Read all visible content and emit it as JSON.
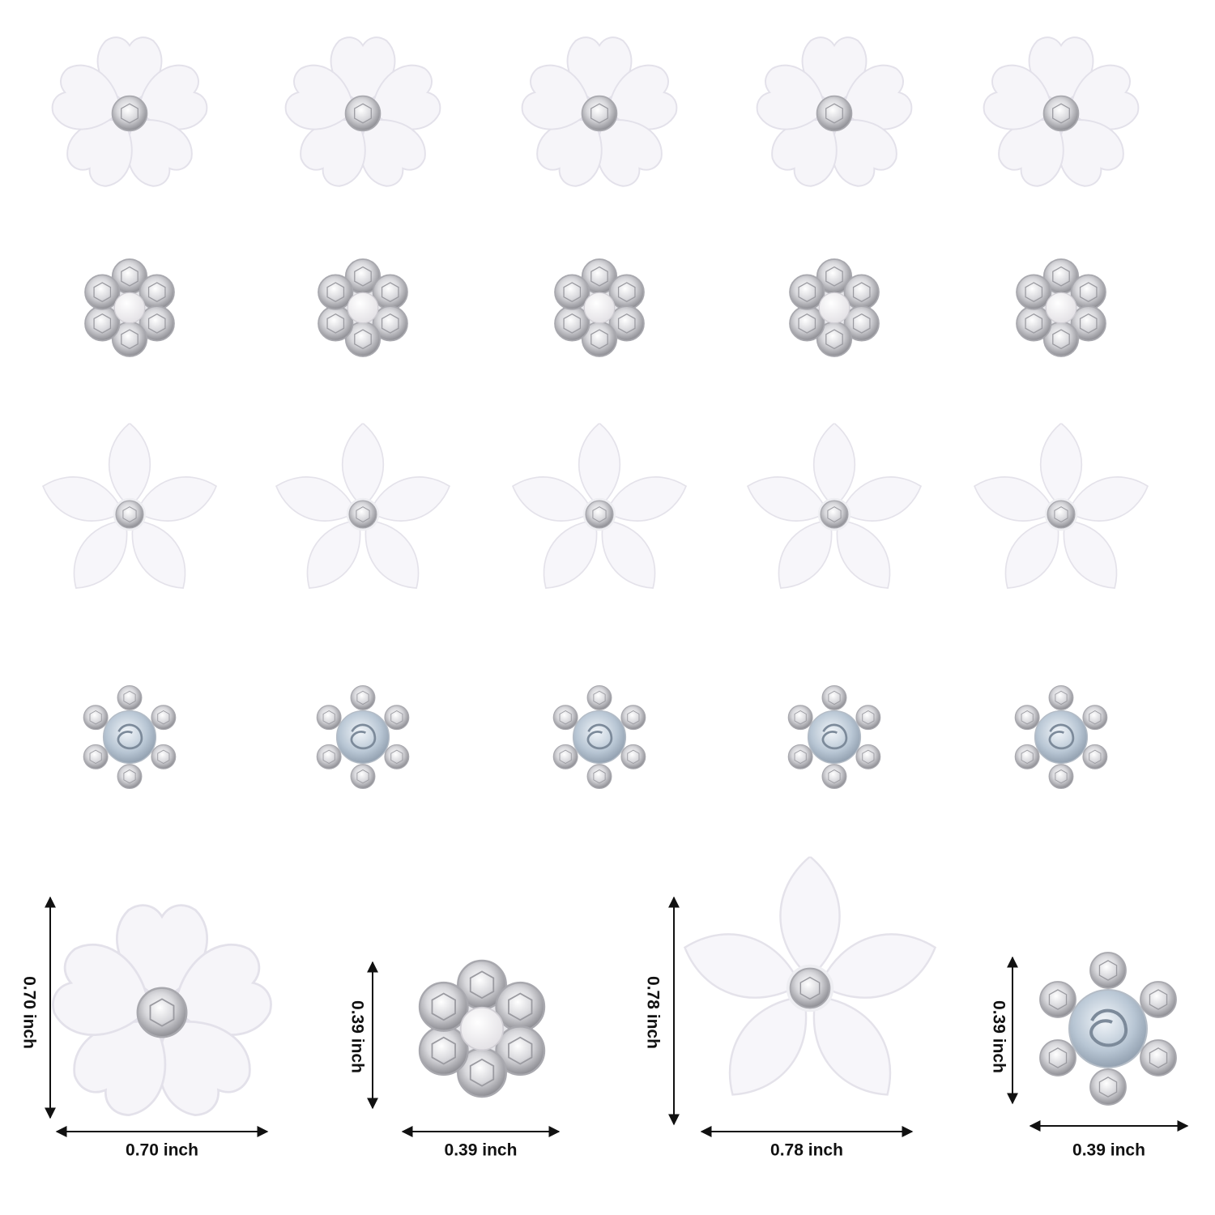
{
  "dimensions": [
    {
      "height": "0.70 inch",
      "width": "0.70 inch"
    },
    {
      "height": "0.39 inch",
      "width": "0.39 inch"
    },
    {
      "height": "0.78 inch",
      "width": "0.78 inch"
    },
    {
      "height": "0.39 inch",
      "width": "0.39 inch"
    }
  ]
}
